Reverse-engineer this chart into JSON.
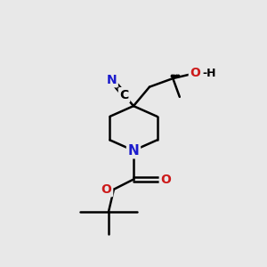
{
  "bg_color": "#e8e8e8",
  "line_color": "#000000",
  "N_color": "#1a1acc",
  "O_color": "#cc1a1a",
  "lw": 1.8,
  "figsize": [
    3.0,
    3.0
  ],
  "dpi": 100,
  "xlim": [
    0,
    10
  ],
  "ylim": [
    0,
    10
  ]
}
